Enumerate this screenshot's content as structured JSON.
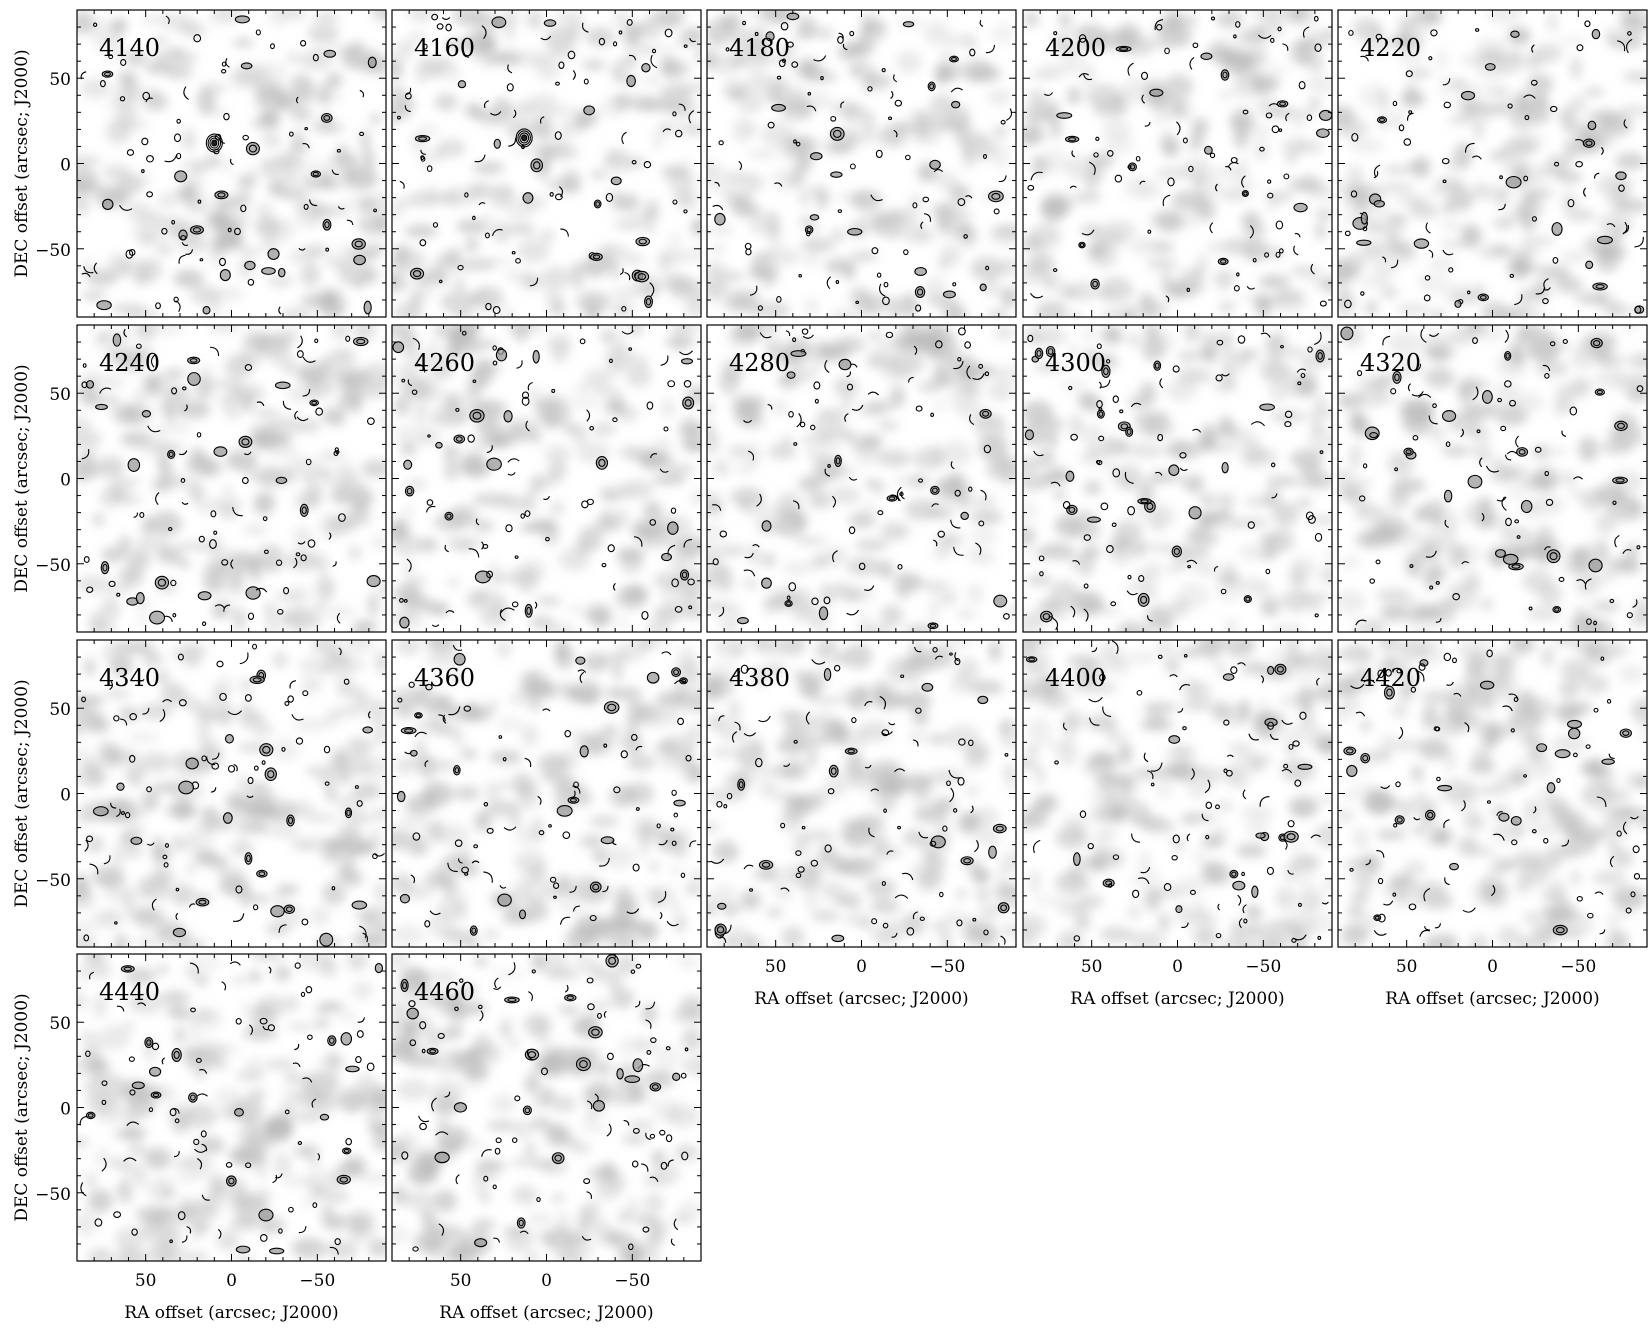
{
  "figure": {
    "x_axis_label": "RA offset (arcsec; J2000)",
    "y_axis_label": "DEC offset (arcsec; J2000)",
    "x_ticks": [
      "50",
      "0",
      "−50"
    ],
    "y_ticks": [
      "50",
      "0",
      "−50"
    ],
    "x_range": [
      90,
      -90
    ],
    "y_range": [
      -90,
      90
    ],
    "colors": {
      "frame": "#000000",
      "noise_dark": "#b8b8b8",
      "contour": "#000000",
      "background": "#ffffff"
    },
    "panels": [
      {
        "label": "4140",
        "seed": 11,
        "peak": {
          "x": 10,
          "y": 12
        }
      },
      {
        "label": "4160",
        "seed": 23,
        "peak": {
          "x": 13,
          "y": 15
        }
      },
      {
        "label": "4180",
        "seed": 37,
        "peak": null
      },
      {
        "label": "4200",
        "seed": 41,
        "peak": null
      },
      {
        "label": "4220",
        "seed": 53,
        "peak": null
      },
      {
        "label": "4240",
        "seed": 67,
        "peak": null
      },
      {
        "label": "4260",
        "seed": 71,
        "peak": null
      },
      {
        "label": "4280",
        "seed": 83,
        "peak": null
      },
      {
        "label": "4300",
        "seed": 97,
        "peak": null
      },
      {
        "label": "4320",
        "seed": 101,
        "peak": null
      },
      {
        "label": "4340",
        "seed": 113,
        "peak": null
      },
      {
        "label": "4360",
        "seed": 127,
        "peak": null
      },
      {
        "label": "4380",
        "seed": 131,
        "peak": null
      },
      {
        "label": "4400",
        "seed": 149,
        "peak": null
      },
      {
        "label": "4420",
        "seed": 157,
        "peak": null
      },
      {
        "label": "4440",
        "seed": 163,
        "peak": null
      },
      {
        "label": "4460",
        "seed": 179,
        "peak": null
      }
    ]
  }
}
